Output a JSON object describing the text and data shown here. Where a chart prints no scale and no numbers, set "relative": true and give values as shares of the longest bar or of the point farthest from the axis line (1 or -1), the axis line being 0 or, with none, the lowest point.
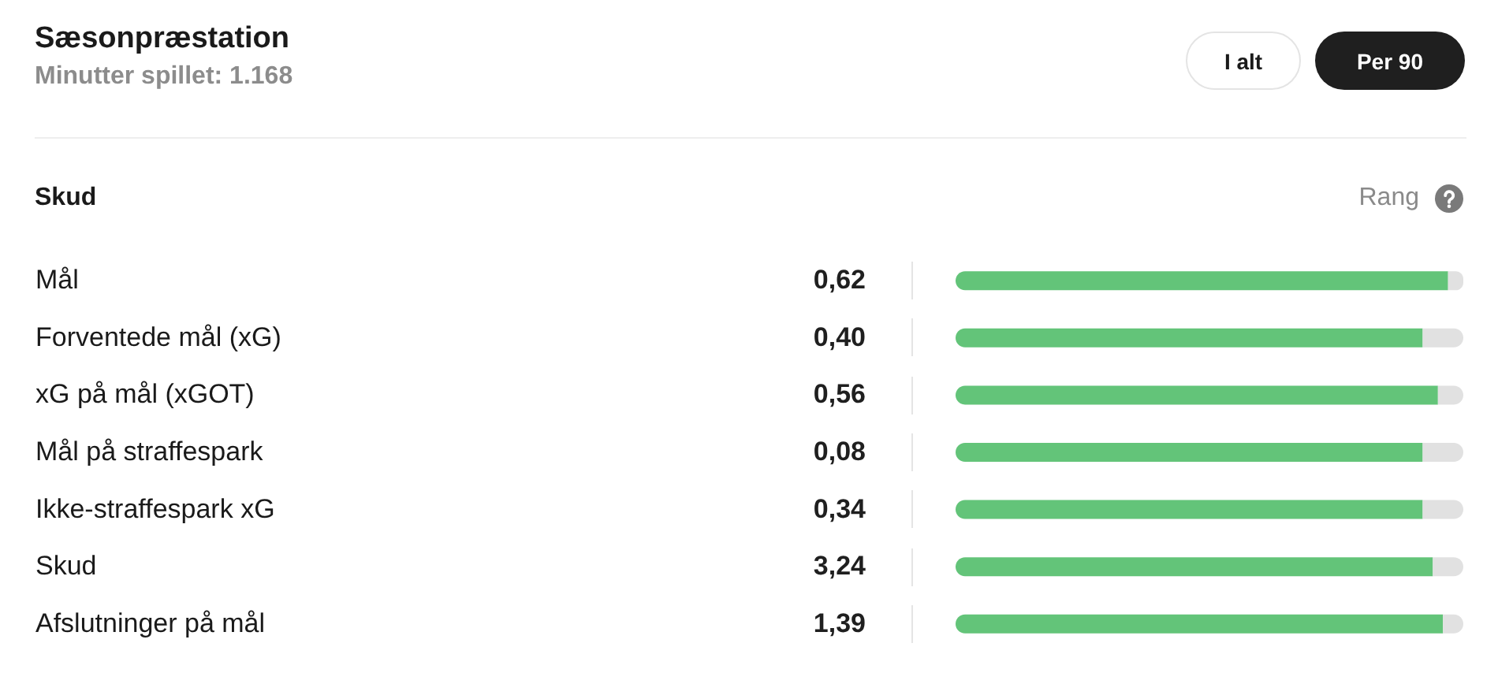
{
  "chart_data": {
    "type": "bar",
    "orientation": "horizontal",
    "stacked": true,
    "relative": true,
    "title": "Sæsonpræstation",
    "subtitle": "Minutter spillet: 1.168",
    "categories": [
      "Mål",
      "Forventede mål (xG)",
      "xG på mål (xGOT)",
      "Mål på straffespark",
      "Ikke-straffespark xG",
      "Skud",
      "Afslutninger på mål"
    ],
    "series": [
      {
        "color": "#63c479",
        "values": [
          0.97,
          0.92,
          0.95,
          0.92,
          0.92,
          0.94,
          0.96
        ]
      },
      {
        "color": "#e1e1e1",
        "values": [
          0.03,
          0.08,
          0.05,
          0.08,
          0.08,
          0.06,
          0.04
        ]
      }
    ],
    "annotations": [
      "Skud",
      "Rang",
      "I alt",
      "Per 90",
      "0,62",
      "0,40",
      "0,56",
      "0,08",
      "0,34",
      "3,24",
      "1,39"
    ]
  }
}
